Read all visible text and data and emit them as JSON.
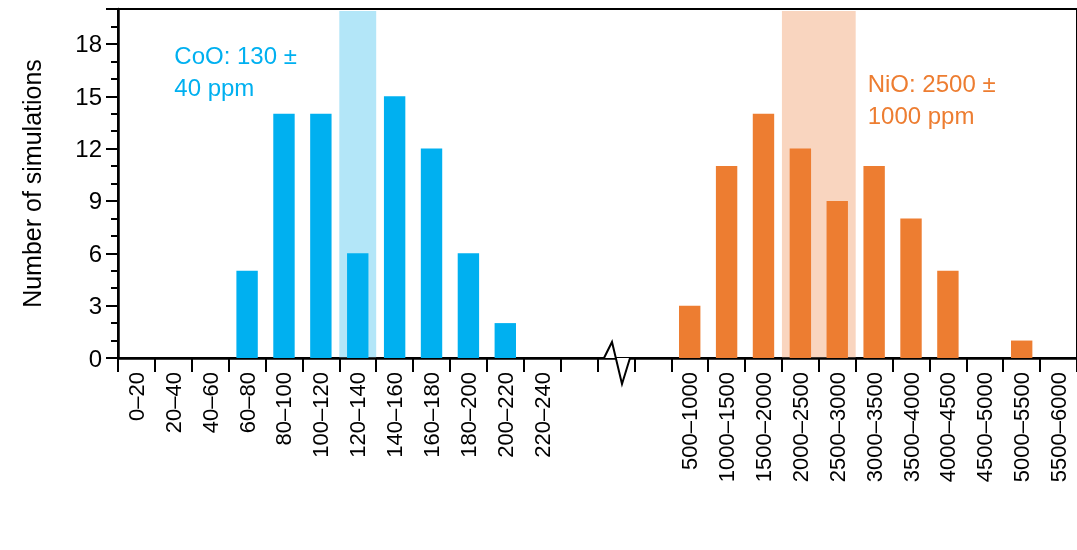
{
  "chart_data": {
    "type": "bar",
    "ylabel": "Number of simulations",
    "categories": [
      "0–20",
      "20–40",
      "40–60",
      "60–80",
      "80–100",
      "100–120",
      "120–140",
      "140–160",
      "160–180",
      "180–200",
      "200–220",
      "220–240",
      null,
      null,
      null,
      "500–1000",
      "1000–1500",
      "1500–2000",
      "2000–2500",
      "2500–3000",
      "3000–3500",
      "3500–4000",
      "4000–4500",
      "4500–5000",
      "5000–5500",
      "5500–6000"
    ],
    "series": [
      {
        "color": "#00b0f0",
        "values": [
          0,
          0,
          0,
          5,
          14,
          14,
          6,
          15,
          12,
          6,
          2,
          0,
          null,
          null,
          null,
          null,
          null,
          null,
          null,
          null,
          null,
          null,
          null,
          null,
          null,
          null
        ]
      },
      {
        "color": "#ed7d31",
        "values": [
          null,
          null,
          null,
          null,
          null,
          null,
          null,
          null,
          null,
          null,
          null,
          null,
          null,
          null,
          null,
          3,
          11,
          14,
          12,
          9,
          11,
          8,
          5,
          0,
          1,
          0
        ]
      }
    ],
    "bands": [
      {
        "axis": "x",
        "from": "120–140",
        "to": "120–140",
        "label": "CoO: 130 ± 40 ppm",
        "color": "#b3e6f8"
      },
      {
        "axis": "x",
        "from": "2000–2500",
        "to": "2500–3000",
        "label": "NiO: 2500 ± 1000 ppm",
        "color": "#f9d5bf"
      }
    ],
    "ylim": [
      0,
      20
    ],
    "yticks": [
      0,
      3,
      6,
      9,
      12,
      15,
      18
    ],
    "grid": false
  }
}
